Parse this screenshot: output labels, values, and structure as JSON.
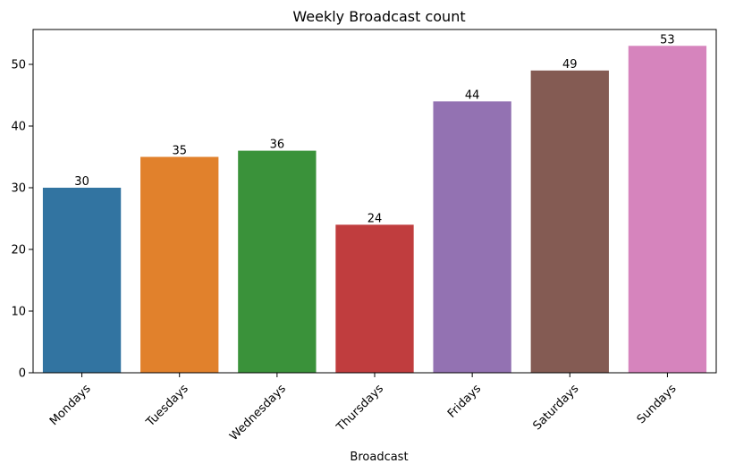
{
  "chart_data": {
    "type": "bar",
    "title": "Weekly Broadcast count",
    "xlabel": "Broadcast",
    "ylabel": "",
    "categories": [
      "Mondays",
      "Tuesdays",
      "Wednesdays",
      "Thursdays",
      "Fridays",
      "Saturdays",
      "Sundays"
    ],
    "values": [
      30,
      35,
      36,
      24,
      44,
      49,
      53
    ],
    "colors": [
      "#3274a1",
      "#e1812c",
      "#3a923a",
      "#c03d3e",
      "#9372b2",
      "#845b53",
      "#d684bd"
    ],
    "ylim": [
      0,
      55.65
    ],
    "yticks": [
      0,
      10,
      20,
      30,
      40,
      50
    ],
    "grid": false,
    "legend": "none"
  }
}
